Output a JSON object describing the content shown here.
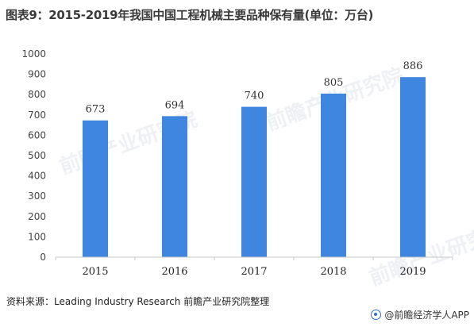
{
  "title": "图表9：2015-2019年我国中国工程机械主要品种保有量(单位：万台)",
  "source": "资料来源：Leading Industry Research 前瞻产业研究院整理",
  "brand": "@前瞻经济学人APP",
  "watermark": "前瞻产业研究院",
  "colors": {
    "bar": "#3f86e0",
    "axis": "#c8c8c8"
  },
  "chart_data": {
    "type": "bar",
    "title": "图表9：2015-2019年我国中国工程机械主要品种保有量(单位：万台)",
    "categories": [
      "2015",
      "2016",
      "2017",
      "2018",
      "2019"
    ],
    "values": [
      673,
      694,
      740,
      805,
      886
    ],
    "ylim": [
      0,
      1000
    ],
    "yticks": [
      0,
      100,
      200,
      300,
      400,
      500,
      600,
      700,
      800,
      900,
      1000
    ],
    "grid": false,
    "data_labels": true
  }
}
